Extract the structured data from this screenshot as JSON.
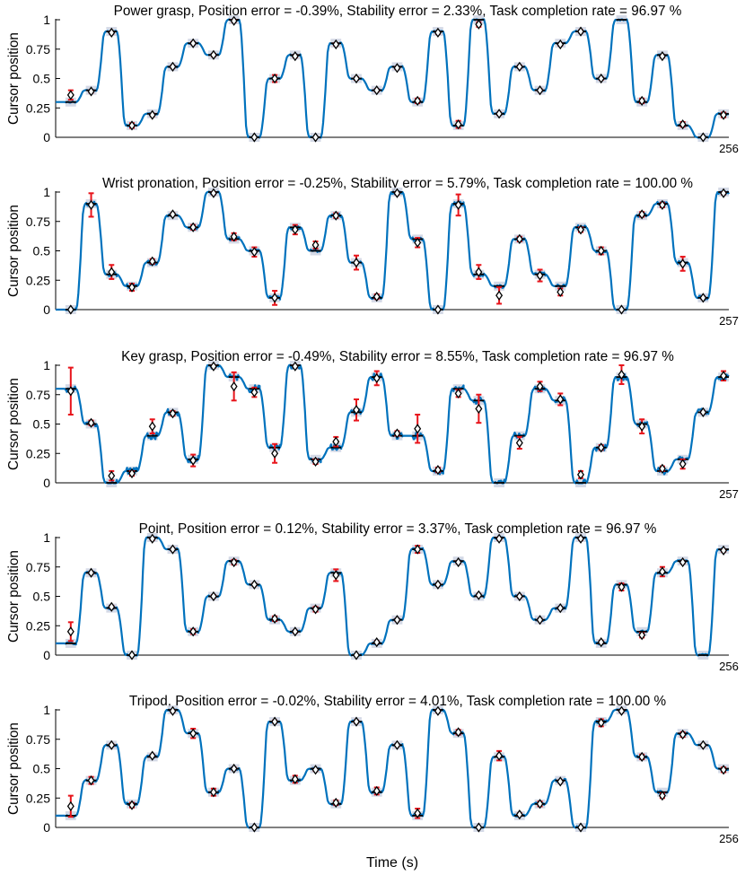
{
  "figure": {
    "xlabel": "Time (s)",
    "ylabel": "Cursor position"
  },
  "colors": {
    "trace": "#0072BD",
    "target_band": "#C9CFE0",
    "target_line": "#000000",
    "error_bar": "#E8141B",
    "marker_fill": "#FFFFFF",
    "marker_edge": "#000000",
    "axis": "#000000"
  },
  "chart_data": [
    {
      "type": "line",
      "title": "Power grasp, Position error = -0.39%, Stability error = 2.33%, Task completion rate = 96.97 %",
      "xlabel": "",
      "ylabel": "Cursor position",
      "ylim": [
        0,
        1
      ],
      "yticks": [
        "0",
        "0.25",
        "0.5",
        "0.75",
        "1"
      ],
      "x_end_label": "256",
      "xlim": [
        0,
        256
      ],
      "targets": [
        0.3,
        0.4,
        0.9,
        0.1,
        0.2,
        0.6,
        0.8,
        0.7,
        1.0,
        0.0,
        0.5,
        0.7,
        0.0,
        0.8,
        0.5,
        0.4,
        0.6,
        0.3,
        0.9,
        0.1,
        1.0,
        0.2,
        0.6,
        0.4,
        0.8,
        0.9,
        0.5,
        1.0,
        0.3,
        0.7,
        0.1,
        0.0,
        0.2
      ],
      "means": [
        0.36,
        0.39,
        0.89,
        0.1,
        0.19,
        0.6,
        0.8,
        0.7,
        0.99,
        0.0,
        0.5,
        0.69,
        0.0,
        0.79,
        0.5,
        0.4,
        0.59,
        0.31,
        0.89,
        0.11,
        0.96,
        0.2,
        0.6,
        0.4,
        0.79,
        0.9,
        0.5,
        null,
        0.31,
        0.69,
        0.11,
        0.0,
        0.19
      ],
      "stds": [
        0.04,
        0.01,
        0.01,
        0.02,
        0.01,
        0.01,
        0.01,
        0.01,
        0.01,
        0.0,
        0.03,
        0.01,
        0.0,
        0.01,
        0.01,
        0.01,
        0.01,
        0.02,
        0.01,
        0.03,
        0.02,
        0.01,
        0.01,
        0.01,
        0.01,
        0.01,
        0.01,
        0.0,
        0.02,
        0.01,
        0.02,
        0.0,
        0.02
      ]
    },
    {
      "type": "line",
      "title": "Wrist pronation, Position error = -0.25%, Stability error = 5.79%, Task completion rate = 100.00 %",
      "xlabel": "",
      "ylabel": "Cursor position",
      "ylim": [
        0,
        1
      ],
      "yticks": [
        "0",
        "0.25",
        "0.5",
        "0.75",
        "1"
      ],
      "x_end_label": "257",
      "xlim": [
        0,
        257
      ],
      "targets": [
        0.0,
        0.9,
        0.3,
        0.2,
        0.4,
        0.8,
        0.7,
        1.0,
        0.6,
        0.5,
        0.1,
        0.7,
        0.5,
        0.8,
        0.4,
        0.1,
        1.0,
        0.6,
        0.0,
        0.9,
        0.3,
        0.2,
        0.6,
        0.3,
        0.2,
        0.7,
        0.5,
        0.0,
        0.8,
        0.9,
        0.4,
        0.1,
        1.0
      ],
      "means": [
        0.0,
        0.89,
        0.32,
        0.19,
        0.41,
        0.81,
        0.7,
        0.99,
        0.62,
        0.49,
        0.1,
        0.68,
        0.55,
        0.8,
        0.4,
        0.11,
        0.99,
        0.57,
        0.0,
        0.89,
        0.32,
        0.12,
        0.6,
        0.29,
        0.15,
        0.68,
        0.5,
        0.0,
        0.81,
        0.89,
        0.39,
        0.1,
        0.99
      ],
      "stds": [
        0.0,
        0.1,
        0.06,
        0.03,
        0.02,
        0.01,
        0.02,
        0.01,
        0.03,
        0.04,
        0.06,
        0.04,
        0.03,
        0.02,
        0.06,
        0.02,
        0.01,
        0.04,
        0.0,
        0.09,
        0.06,
        0.07,
        0.02,
        0.05,
        0.03,
        0.02,
        0.03,
        0.0,
        0.02,
        0.02,
        0.06,
        0.01,
        0.01
      ]
    },
    {
      "type": "line",
      "title": "Key grasp, Position error = -0.49%, Stability error = 8.55%, Task completion rate = 96.97 %",
      "xlabel": "",
      "ylabel": "Cursor position",
      "ylim": [
        0,
        1
      ],
      "yticks": [
        "0",
        "0.25",
        "0.5",
        "0.75",
        "1"
      ],
      "x_end_label": "257",
      "xlim": [
        0,
        257
      ],
      "targets": [
        0.8,
        0.5,
        0.0,
        0.1,
        0.4,
        0.6,
        0.2,
        1.0,
        0.9,
        0.8,
        0.3,
        1.0,
        0.2,
        0.3,
        0.6,
        0.9,
        0.4,
        0.4,
        0.1,
        0.8,
        0.7,
        0.0,
        0.4,
        0.8,
        0.7,
        0.0,
        0.3,
        0.9,
        0.5,
        0.1,
        0.2,
        0.6,
        0.9
      ],
      "means": [
        0.78,
        0.51,
        0.06,
        0.08,
        0.48,
        0.59,
        0.19,
        0.99,
        0.82,
        0.77,
        0.25,
        0.99,
        0.18,
        0.35,
        0.62,
        0.89,
        0.42,
        0.46,
        0.11,
        0.76,
        0.63,
        null,
        0.34,
        0.82,
        0.71,
        0.07,
        0.3,
        0.92,
        0.48,
        0.12,
        0.16,
        0.6,
        0.91
      ],
      "stds": [
        0.2,
        0.02,
        0.04,
        0.02,
        0.06,
        0.02,
        0.05,
        0.01,
        0.12,
        0.04,
        0.08,
        0.01,
        0.02,
        0.04,
        0.09,
        0.06,
        0.02,
        0.12,
        0.02,
        0.03,
        0.12,
        0.0,
        0.05,
        0.04,
        0.05,
        0.03,
        0.02,
        0.08,
        0.06,
        0.02,
        0.04,
        0.01,
        0.04
      ]
    },
    {
      "type": "line",
      "title": "Point, Position error = 0.12%, Stability error = 3.37%, Task completion rate = 96.97 %",
      "xlabel": "",
      "ylabel": "Cursor position",
      "ylim": [
        0,
        1
      ],
      "yticks": [
        "0",
        "0.25",
        "0.5",
        "0.75",
        "1"
      ],
      "x_end_label": "256",
      "xlim": [
        0,
        256
      ],
      "targets": [
        0.1,
        0.7,
        0.4,
        0.0,
        1.0,
        0.9,
        0.2,
        0.5,
        0.8,
        0.6,
        0.3,
        0.2,
        0.4,
        0.7,
        0.0,
        0.1,
        0.3,
        0.9,
        0.6,
        0.8,
        0.5,
        1.0,
        0.5,
        0.3,
        0.4,
        1.0,
        0.1,
        0.6,
        0.2,
        0.7,
        0.8,
        0.0,
        0.9
      ],
      "means": [
        0.2,
        0.7,
        0.41,
        0.0,
        0.99,
        0.9,
        0.2,
        0.5,
        0.79,
        0.6,
        0.31,
        0.2,
        0.39,
        0.68,
        0.0,
        0.11,
        0.3,
        0.9,
        0.6,
        0.79,
        0.51,
        0.99,
        0.5,
        0.3,
        0.4,
        0.99,
        0.11,
        0.58,
        0.17,
        0.71,
        0.79,
        null,
        0.89
      ],
      "stds": [
        0.08,
        0.01,
        0.01,
        0.0,
        0.01,
        0.01,
        0.02,
        0.01,
        0.02,
        0.01,
        0.02,
        0.01,
        0.02,
        0.05,
        0.0,
        0.01,
        0.01,
        0.03,
        0.01,
        0.01,
        0.01,
        0.01,
        0.01,
        0.01,
        0.01,
        0.01,
        0.01,
        0.03,
        0.02,
        0.04,
        0.01,
        0.0,
        0.01
      ]
    },
    {
      "type": "line",
      "title": "Tripod, Position error = -0.02%, Stability error = 4.01%, Task completion rate = 100.00 %",
      "xlabel": "Time (s)",
      "ylabel": "Cursor position",
      "ylim": [
        0,
        1
      ],
      "yticks": [
        "0",
        "0.25",
        "0.5",
        "0.75",
        "1"
      ],
      "x_end_label": "256",
      "xlim": [
        0,
        256
      ],
      "targets": [
        0.1,
        0.4,
        0.7,
        0.2,
        0.6,
        1.0,
        0.8,
        0.3,
        0.5,
        0.0,
        0.9,
        0.4,
        0.5,
        0.2,
        0.9,
        0.3,
        0.7,
        0.1,
        1.0,
        0.8,
        0.0,
        0.6,
        0.1,
        0.2,
        0.4,
        0.0,
        0.9,
        1.0,
        0.6,
        0.3,
        0.8,
        0.7,
        0.5
      ],
      "means": [
        0.18,
        0.4,
        0.7,
        0.19,
        0.61,
        0.99,
        0.8,
        0.3,
        0.5,
        0.0,
        0.9,
        0.41,
        0.49,
        0.21,
        0.9,
        0.31,
        0.7,
        0.12,
        0.99,
        0.81,
        0.0,
        0.61,
        0.11,
        0.2,
        0.39,
        0.0,
        0.89,
        0.99,
        0.6,
        0.27,
        0.79,
        0.7,
        0.49
      ],
      "stds": [
        0.09,
        0.03,
        0.01,
        0.02,
        0.01,
        0.01,
        0.04,
        0.03,
        0.01,
        0.0,
        0.01,
        0.03,
        0.01,
        0.02,
        0.01,
        0.03,
        0.01,
        0.04,
        0.01,
        0.02,
        0.0,
        0.04,
        0.01,
        0.02,
        0.01,
        0.0,
        0.03,
        0.01,
        0.02,
        0.02,
        0.02,
        0.01,
        0.02
      ]
    }
  ]
}
